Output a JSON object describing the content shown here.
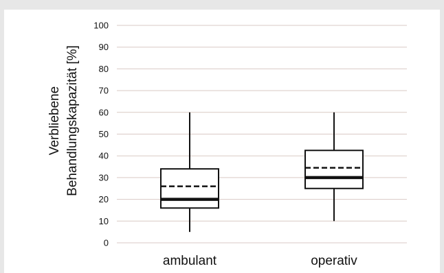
{
  "chart_data": {
    "type": "box",
    "title": "",
    "ylabel_lines": [
      "Verbliebene",
      "Behandlungskapazität [%]"
    ],
    "xlabel": "",
    "ylim": [
      0,
      100
    ],
    "yticks": [
      0,
      10,
      20,
      30,
      40,
      50,
      60,
      70,
      80,
      90,
      100
    ],
    "grid": true,
    "legend": "none",
    "categories": [
      "ambulant",
      "operativ"
    ],
    "boxes": [
      {
        "category": "ambulant",
        "whisker_low": 5,
        "q1": 16,
        "median": 20,
        "mean": 26,
        "q3": 34,
        "whisker_high": 60
      },
      {
        "category": "operativ",
        "whisker_low": 10,
        "q1": 25,
        "median": 30,
        "mean": 34.5,
        "q3": 42.5,
        "whisker_high": 60
      }
    ],
    "colors": {
      "box_stroke": "#111111",
      "gridline": "#d9c9c4"
    }
  }
}
